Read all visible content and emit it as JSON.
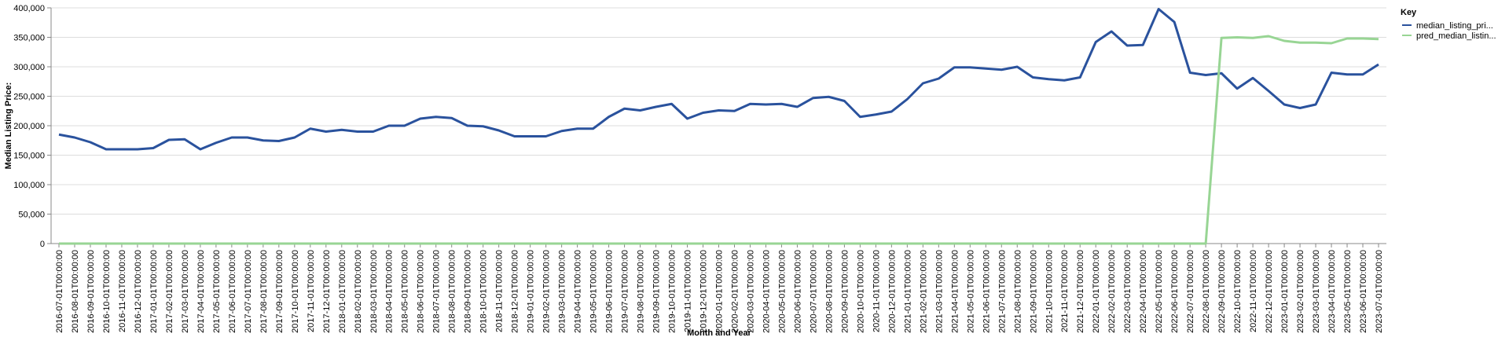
{
  "chart_data": {
    "type": "line",
    "x_label": "Month and Year",
    "y_label": "Median Listing Price:",
    "legend_title": "Key",
    "legend": "right",
    "grid": true,
    "ylim": [
      0,
      400000
    ],
    "yticks": [
      0,
      {
        "value": 50000,
        "label": "50,000"
      },
      {
        "value": 100000,
        "label": "100,000"
      },
      {
        "value": 150000,
        "label": "150,000"
      },
      {
        "value": 200000,
        "label": "200,000"
      },
      {
        "value": 250000,
        "label": "250,000"
      },
      {
        "value": 300000,
        "label": "300,000"
      },
      {
        "value": 350000,
        "label": "350,000"
      },
      {
        "value": 400000,
        "label": "400,000"
      }
    ],
    "categories": [
      "2016-07-01T00:00:00",
      "2016-08-01T00:00:00",
      "2016-09-01T00:00:00",
      "2016-10-01T00:00:00",
      "2016-11-01T00:00:00",
      "2016-12-01T00:00:00",
      "2017-01-01T00:00:00",
      "2017-02-01T00:00:00",
      "2017-03-01T00:00:00",
      "2017-04-01T00:00:00",
      "2017-05-01T00:00:00",
      "2017-06-01T00:00:00",
      "2017-07-01T00:00:00",
      "2017-08-01T00:00:00",
      "2017-09-01T00:00:00",
      "2017-10-01T00:00:00",
      "2017-11-01T00:00:00",
      "2017-12-01T00:00:00",
      "2018-01-01T00:00:00",
      "2018-02-01T00:00:00",
      "2018-03-01T00:00:00",
      "2018-04-01T00:00:00",
      "2018-05-01T00:00:00",
      "2018-06-01T00:00:00",
      "2018-07-01T00:00:00",
      "2018-08-01T00:00:00",
      "2018-09-01T00:00:00",
      "2018-10-01T00:00:00",
      "2018-11-01T00:00:00",
      "2018-12-01T00:00:00",
      "2019-01-01T00:00:00",
      "2019-02-01T00:00:00",
      "2019-03-01T00:00:00",
      "2019-04-01T00:00:00",
      "2019-05-01T00:00:00",
      "2019-06-01T00:00:00",
      "2019-07-01T00:00:00",
      "2019-08-01T00:00:00",
      "2019-09-01T00:00:00",
      "2019-10-01T00:00:00",
      "2019-11-01T00:00:00",
      "2019-12-01T00:00:00",
      "2020-01-01T00:00:00",
      "2020-02-01T00:00:00",
      "2020-03-01T00:00:00",
      "2020-04-01T00:00:00",
      "2020-05-01T00:00:00",
      "2020-06-01T00:00:00",
      "2020-07-01T00:00:00",
      "2020-08-01T00:00:00",
      "2020-09-01T00:00:00",
      "2020-10-01T00:00:00",
      "2020-11-01T00:00:00",
      "2020-12-01T00:00:00",
      "2021-01-01T00:00:00",
      "2021-02-01T00:00:00",
      "2021-03-01T00:00:00",
      "2021-04-01T00:00:00",
      "2021-05-01T00:00:00",
      "2021-06-01T00:00:00",
      "2021-07-01T00:00:00",
      "2021-08-01T00:00:00",
      "2021-09-01T00:00:00",
      "2021-10-01T00:00:00",
      "2021-11-01T00:00:00",
      "2021-12-01T00:00:00",
      "2022-01-01T00:00:00",
      "2022-02-01T00:00:00",
      "2022-03-01T00:00:00",
      "2022-04-01T00:00:00",
      "2022-05-01T00:00:00",
      "2022-06-01T00:00:00",
      "2022-07-01T00:00:00",
      "2022-08-01T00:00:00",
      "2022-09-01T00:00:00",
      "2022-10-01T00:00:00",
      "2022-11-01T00:00:00",
      "2022-12-01T00:00:00",
      "2023-01-01T00:00:00",
      "2023-02-01T00:00:00",
      "2023-03-01T00:00:00",
      "2023-04-01T00:00:00",
      "2023-05-01T00:00:00",
      "2023-06-01T00:00:00",
      "2023-07-01T00:00:00"
    ],
    "series": [
      {
        "name": "median_listing_pri...",
        "color": "#2a529d",
        "values": [
          185000,
          180000,
          172000,
          160000,
          160000,
          160000,
          162000,
          176000,
          177000,
          160000,
          171000,
          180000,
          180000,
          175000,
          174000,
          180000,
          195000,
          190000,
          193000,
          190000,
          190000,
          200000,
          200000,
          212000,
          215000,
          213000,
          200000,
          199000,
          192000,
          182000,
          182000,
          182000,
          191000,
          195000,
          195000,
          215000,
          229000,
          226000,
          232000,
          237000,
          212000,
          222000,
          226000,
          225000,
          237000,
          236000,
          237000,
          232000,
          247000,
          249000,
          242000,
          215000,
          219000,
          224000,
          245000,
          272000,
          280000,
          299000,
          299000,
          297000,
          295000,
          300000,
          282000,
          279000,
          277000,
          282000,
          342000,
          360000,
          336000,
          337000,
          398000,
          376000,
          290000,
          286000,
          289000,
          263000,
          281000,
          259000,
          236000,
          230000,
          236000,
          290000,
          287000,
          287000,
          304000
        ]
      },
      {
        "name": "pred_median_listin...",
        "color": "#98d594",
        "values": [
          0,
          0,
          0,
          0,
          0,
          0,
          0,
          0,
          0,
          0,
          0,
          0,
          0,
          0,
          0,
          0,
          0,
          0,
          0,
          0,
          0,
          0,
          0,
          0,
          0,
          0,
          0,
          0,
          0,
          0,
          0,
          0,
          0,
          0,
          0,
          0,
          0,
          0,
          0,
          0,
          0,
          0,
          0,
          0,
          0,
          0,
          0,
          0,
          0,
          0,
          0,
          0,
          0,
          0,
          0,
          0,
          0,
          0,
          0,
          0,
          0,
          0,
          0,
          0,
          0,
          0,
          0,
          0,
          0,
          0,
          0,
          0,
          0,
          0,
          349000,
          350000,
          349000,
          352000,
          344000,
          341000,
          341000,
          340000,
          348000,
          348000,
          347000
        ]
      }
    ]
  }
}
